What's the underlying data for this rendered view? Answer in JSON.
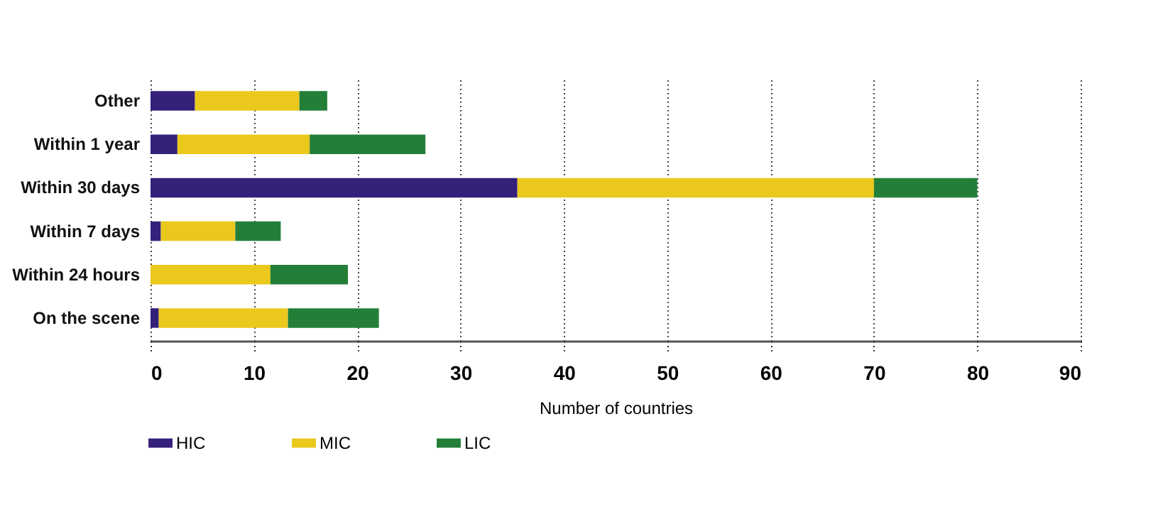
{
  "chart_data": {
    "type": "bar",
    "orientation": "horizontal",
    "stacked": true,
    "categories": [
      "Other",
      "Within 1 year",
      "Within 30 days",
      "Within 7 days",
      "Within 24 hours",
      "On the scene"
    ],
    "series": [
      {
        "name": "HIC",
        "color": "#35207a",
        "values": [
          4.3,
          2.6,
          35.5,
          1,
          0,
          0.8
        ]
      },
      {
        "name": "MIC",
        "color": "#eac81c",
        "values": [
          10.1,
          12.8,
          34.5,
          7.2,
          11.6,
          12.5
        ]
      },
      {
        "name": "LIC",
        "color": "#237f38",
        "values": [
          2.7,
          11.2,
          10,
          4.4,
          7.5,
          8.8
        ]
      }
    ],
    "xlabel": "Number of countries",
    "xlim": [
      0,
      90
    ],
    "xticks": [
      0,
      10,
      20,
      30,
      40,
      50,
      60,
      70,
      80,
      90
    ],
    "grid": "x",
    "legend": "bottom left"
  }
}
